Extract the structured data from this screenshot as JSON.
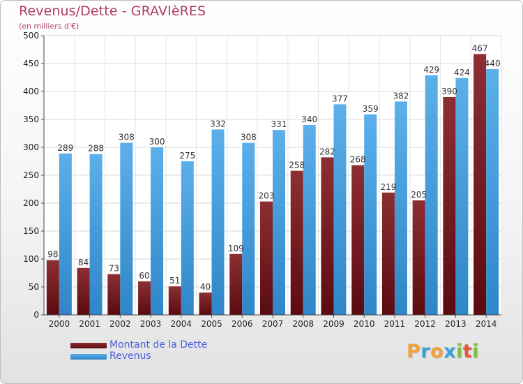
{
  "chart_data": {
    "type": "bar",
    "title": "Revenus/Dette - GRAVIèRES",
    "subtitle": "(en milliers d'€)",
    "categories": [
      "2000",
      "2001",
      "2002",
      "2003",
      "2004",
      "2005",
      "2006",
      "2007",
      "2008",
      "2009",
      "2010",
      "2011",
      "2012",
      "2013",
      "2014"
    ],
    "series": [
      {
        "name": "Montant de la Dette",
        "color": "#7a1f24",
        "values": [
          98,
          84,
          73,
          60,
          51,
          40,
          109,
          203,
          258,
          282,
          268,
          219,
          205,
          390,
          467
        ]
      },
      {
        "name": "Revenus",
        "color": "#4aa3e2",
        "values": [
          289,
          288,
          308,
          300,
          275,
          332,
          308,
          331,
          340,
          377,
          359,
          382,
          429,
          424,
          440
        ]
      }
    ],
    "ylim": [
      0,
      500
    ],
    "yticks": [
      0,
      50,
      100,
      150,
      200,
      250,
      300,
      350,
      400,
      450,
      500
    ],
    "grid": true,
    "legend_position": "bottom-left"
  },
  "logo": {
    "letters": [
      "P",
      "r",
      "o",
      "x",
      "i",
      "t",
      "i"
    ],
    "colors": [
      "#f2a13a",
      "#3aa0d8",
      "#f2a13a",
      "#3aa0d8",
      "#7ac142",
      "#e8533f",
      "#7ac142"
    ]
  }
}
